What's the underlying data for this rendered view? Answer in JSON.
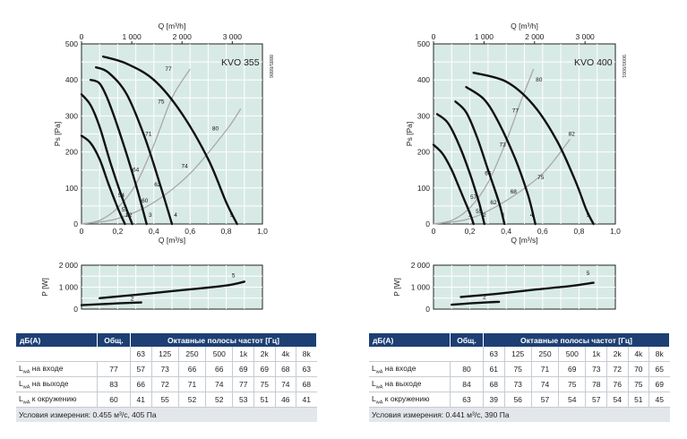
{
  "chart_data": [
    {
      "type": "line",
      "title": "KVO 355",
      "side_code": "8885/8886",
      "xlabel": "Q [m³/s]",
      "x2label": "Q [m³/h]",
      "ylabel": "Ps [Pa]",
      "xlim": [
        0,
        1.0
      ],
      "ylim": [
        0,
        500
      ],
      "x_ticks": [
        "0",
        "0,2",
        "0,4",
        "0,6",
        "0,8",
        "1,0"
      ],
      "x2_ticks": [
        "0",
        "1 000",
        "2 000",
        "3 000"
      ],
      "y_ticks": [
        "0",
        "100",
        "200",
        "300",
        "400",
        "500"
      ],
      "series": [
        {
          "name": "1",
          "points": [
            [
              0.0,
              245
            ],
            [
              0.05,
              225
            ],
            [
              0.1,
              180
            ],
            [
              0.15,
              110
            ],
            [
              0.2,
              45
            ],
            [
              0.24,
              0
            ]
          ]
        },
        {
          "name": "2",
          "points": [
            [
              0.0,
              360
            ],
            [
              0.05,
              330
            ],
            [
              0.1,
              270
            ],
            [
              0.16,
              170
            ],
            [
              0.22,
              80
            ],
            [
              0.28,
              0
            ]
          ]
        },
        {
          "name": "3",
          "points": [
            [
              0.05,
              400
            ],
            [
              0.1,
              390
            ],
            [
              0.15,
              340
            ],
            [
              0.22,
              240
            ],
            [
              0.3,
              110
            ],
            [
              0.36,
              0
            ]
          ]
        },
        {
          "name": "4",
          "points": [
            [
              0.08,
              435
            ],
            [
              0.15,
              420
            ],
            [
              0.25,
              360
            ],
            [
              0.35,
              240
            ],
            [
              0.44,
              100
            ],
            [
              0.5,
              0
            ]
          ]
        },
        {
          "name": "5",
          "points": [
            [
              0.12,
              465
            ],
            [
              0.25,
              445
            ],
            [
              0.4,
              400
            ],
            [
              0.55,
              310
            ],
            [
              0.7,
              180
            ],
            [
              0.8,
              60
            ],
            [
              0.86,
              0
            ]
          ]
        }
      ],
      "system_curves": [
        [
          [
            0.0,
            0
          ],
          [
            0.1,
            10
          ],
          [
            0.2,
            45
          ],
          [
            0.3,
            110
          ],
          [
            0.4,
            220
          ],
          [
            0.5,
            350
          ],
          [
            0.6,
            430
          ]
        ],
        [
          [
            0.0,
            0
          ],
          [
            0.2,
            15
          ],
          [
            0.4,
            60
          ],
          [
            0.6,
            140
          ],
          [
            0.8,
            260
          ],
          [
            0.88,
            320
          ]
        ]
      ],
      "point_labels": [
        {
          "text": "77",
          "x": 0.48,
          "y": 425
        },
        {
          "text": "75",
          "x": 0.44,
          "y": 335
        },
        {
          "text": "71",
          "x": 0.37,
          "y": 245
        },
        {
          "text": "64",
          "x": 0.3,
          "y": 145
        },
        {
          "text": "54",
          "x": 0.22,
          "y": 75
        },
        {
          "text": "51",
          "x": 0.24,
          "y": 35
        },
        {
          "text": "80",
          "x": 0.74,
          "y": 260
        },
        {
          "text": "74",
          "x": 0.57,
          "y": 155
        },
        {
          "text": "62",
          "x": 0.42,
          "y": 105
        },
        {
          "text": "60",
          "x": 0.35,
          "y": 60
        },
        {
          "text": "1",
          "x": 0.25,
          "y": 20
        },
        {
          "text": "2",
          "x": 0.27,
          "y": 20
        },
        {
          "text": "3",
          "x": 0.38,
          "y": 20
        },
        {
          "text": "4",
          "x": 0.52,
          "y": 20
        },
        {
          "text": "5",
          "x": 0.83,
          "y": 20
        }
      ],
      "power": {
        "ylabel": "P [W]",
        "y_ticks": [
          "0",
          "1 000",
          "2 000"
        ],
        "ylim": [
          0,
          2000
        ],
        "series": [
          {
            "name": "2",
            "points": [
              [
                0.0,
                180
              ],
              [
                0.1,
                220
              ],
              [
                0.2,
                260
              ],
              [
                0.28,
                290
              ],
              [
                0.33,
                300
              ]
            ]
          },
          {
            "name": "5",
            "points": [
              [
                0.1,
                500
              ],
              [
                0.3,
                650
              ],
              [
                0.5,
                820
              ],
              [
                0.7,
                980
              ],
              [
                0.82,
                1100
              ],
              [
                0.9,
                1250
              ]
            ]
          }
        ],
        "labels": [
          {
            "text": "2",
            "x": 0.28,
            "y": 380
          },
          {
            "text": "5",
            "x": 0.84,
            "y": 1450
          }
        ]
      },
      "table": {
        "head_db": "дБ(A)",
        "head_total": "Общ.",
        "head_bands": "Октавные полосы частот [Гц]",
        "bands": [
          "63",
          "125",
          "250",
          "500",
          "1k",
          "2k",
          "4k",
          "8k"
        ],
        "rows": [
          {
            "label_main": "L",
            "label_sub": "wA",
            "label_rest": " на входе",
            "total": "77",
            "values": [
              "57",
              "73",
              "66",
              "66",
              "69",
              "69",
              "68",
              "63"
            ]
          },
          {
            "label_main": "L",
            "label_sub": "wA",
            "label_rest": " на выходе",
            "total": "83",
            "values": [
              "66",
              "72",
              "71",
              "74",
              "77",
              "75",
              "74",
              "68"
            ]
          },
          {
            "label_main": "L",
            "label_sub": "wA",
            "label_rest": " к окружению",
            "total": "60",
            "values": [
              "41",
              "55",
              "52",
              "52",
              "53",
              "51",
              "46",
              "41"
            ]
          }
        ],
        "conditions": "Условия измерения: 0.455 м³/с, 405 Па"
      }
    },
    {
      "type": "line",
      "title": "KVO 400",
      "side_code": "9000/9001",
      "xlabel": "Q [m³/s]",
      "x2label": "Q [m³/h]",
      "ylabel": "Ps [Pa]",
      "xlim": [
        0,
        1.0
      ],
      "ylim": [
        0,
        500
      ],
      "x_ticks": [
        "0",
        "0,2",
        "0,4",
        "0,6",
        "0,8",
        "1,0"
      ],
      "x2_ticks": [
        "0",
        "1 000",
        "2 000",
        "3 000"
      ],
      "y_ticks": [
        "0",
        "100",
        "200",
        "300",
        "400",
        "500"
      ],
      "series": [
        {
          "name": "1",
          "points": [
            [
              0.0,
              220
            ],
            [
              0.05,
              195
            ],
            [
              0.1,
              150
            ],
            [
              0.15,
              90
            ],
            [
              0.2,
              30
            ],
            [
              0.22,
              0
            ]
          ]
        },
        {
          "name": "2",
          "points": [
            [
              0.02,
              305
            ],
            [
              0.08,
              280
            ],
            [
              0.14,
              220
            ],
            [
              0.2,
              140
            ],
            [
              0.25,
              60
            ],
            [
              0.28,
              0
            ]
          ]
        },
        {
          "name": "3",
          "points": [
            [
              0.12,
              340
            ],
            [
              0.18,
              310
            ],
            [
              0.24,
              240
            ],
            [
              0.3,
              150
            ],
            [
              0.36,
              60
            ],
            [
              0.39,
              0
            ]
          ]
        },
        {
          "name": "4",
          "points": [
            [
              0.18,
              380
            ],
            [
              0.28,
              345
            ],
            [
              0.36,
              280
            ],
            [
              0.45,
              180
            ],
            [
              0.52,
              80
            ],
            [
              0.56,
              0
            ]
          ]
        },
        {
          "name": "5",
          "points": [
            [
              0.22,
              420
            ],
            [
              0.4,
              395
            ],
            [
              0.55,
              330
            ],
            [
              0.68,
              230
            ],
            [
              0.78,
              120
            ],
            [
              0.84,
              40
            ],
            [
              0.88,
              0
            ]
          ]
        }
      ],
      "system_curves": [
        [
          [
            0.0,
            0
          ],
          [
            0.1,
            10
          ],
          [
            0.2,
            45
          ],
          [
            0.3,
            115
          ],
          [
            0.4,
            230
          ],
          [
            0.48,
            340
          ],
          [
            0.55,
            430
          ]
        ],
        [
          [
            0.0,
            0
          ],
          [
            0.2,
            15
          ],
          [
            0.4,
            65
          ],
          [
            0.6,
            140
          ],
          [
            0.75,
            235
          ]
        ]
      ],
      "point_labels": [
        {
          "text": "80",
          "x": 0.58,
          "y": 395
        },
        {
          "text": "77",
          "x": 0.45,
          "y": 310
        },
        {
          "text": "73",
          "x": 0.38,
          "y": 215
        },
        {
          "text": "66",
          "x": 0.3,
          "y": 135
        },
        {
          "text": "57",
          "x": 0.22,
          "y": 70
        },
        {
          "text": "82",
          "x": 0.76,
          "y": 245
        },
        {
          "text": "75",
          "x": 0.59,
          "y": 125
        },
        {
          "text": "68",
          "x": 0.44,
          "y": 85
        },
        {
          "text": "62",
          "x": 0.33,
          "y": 55
        },
        {
          "text": "55",
          "x": 0.25,
          "y": 30
        },
        {
          "text": "1",
          "x": 0.2,
          "y": 20
        },
        {
          "text": "2",
          "x": 0.28,
          "y": 20
        },
        {
          "text": "3",
          "x": 0.38,
          "y": 20
        },
        {
          "text": "4",
          "x": 0.54,
          "y": 20
        },
        {
          "text": "5",
          "x": 0.85,
          "y": 20
        }
      ],
      "power": {
        "ylabel": "P [W]",
        "y_ticks": [
          "0",
          "1 000",
          "2 000"
        ],
        "ylim": [
          0,
          2000
        ],
        "series": [
          {
            "name": "2",
            "points": [
              [
                0.1,
                200
              ],
              [
                0.2,
                260
              ],
              [
                0.3,
                310
              ],
              [
                0.36,
                330
              ]
            ]
          },
          {
            "name": "5",
            "points": [
              [
                0.15,
                550
              ],
              [
                0.35,
                700
              ],
              [
                0.55,
                880
              ],
              [
                0.75,
                1050
              ],
              [
                0.88,
                1200
              ]
            ]
          }
        ],
        "labels": [
          {
            "text": "2",
            "x": 0.28,
            "y": 460
          },
          {
            "text": "5",
            "x": 0.85,
            "y": 1550
          }
        ]
      },
      "table": {
        "head_db": "дБ(A)",
        "head_total": "Общ.",
        "head_bands": "Октавные полосы частот [Гц]",
        "bands": [
          "63",
          "125",
          "250",
          "500",
          "1k",
          "2k",
          "4k",
          "8k"
        ],
        "rows": [
          {
            "label_main": "L",
            "label_sub": "wA",
            "label_rest": " на входе",
            "total": "80",
            "values": [
              "61",
              "75",
              "71",
              "69",
              "73",
              "72",
              "70",
              "65"
            ]
          },
          {
            "label_main": "L",
            "label_sub": "wA",
            "label_rest": " на выходе",
            "total": "84",
            "values": [
              "68",
              "73",
              "74",
              "75",
              "78",
              "76",
              "75",
              "69"
            ]
          },
          {
            "label_main": "L",
            "label_sub": "wA",
            "label_rest": " к окружению",
            "total": "63",
            "values": [
              "39",
              "56",
              "57",
              "54",
              "57",
              "54",
              "51",
              "45"
            ]
          }
        ],
        "conditions": "Условия измерения: 0.441 м³/с, 390 Па"
      }
    }
  ]
}
